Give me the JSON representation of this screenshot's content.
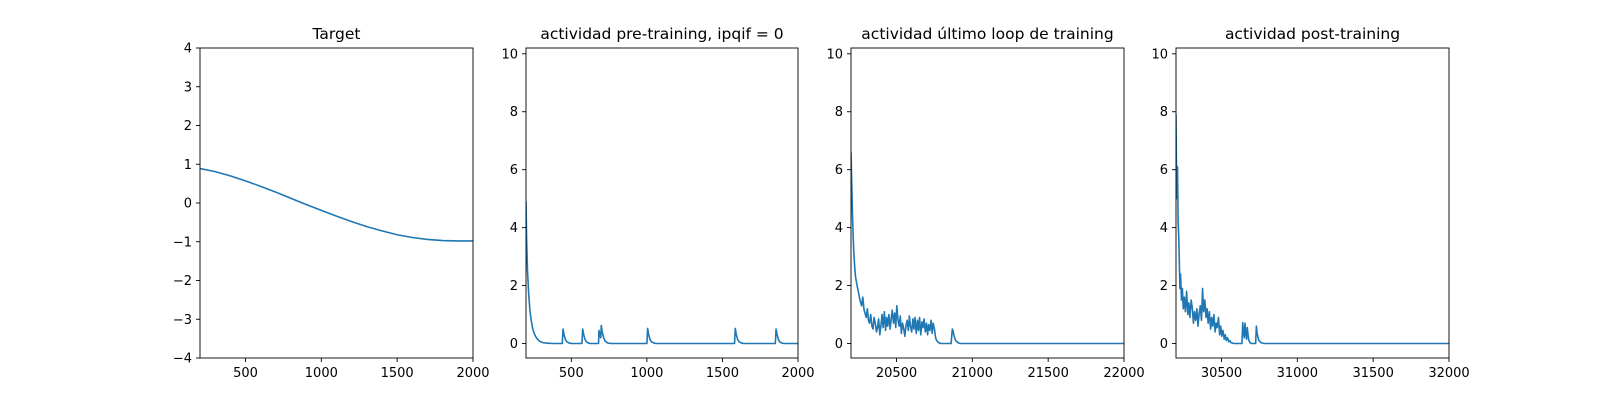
{
  "chart_data": [
    {
      "type": "line",
      "title": "Target",
      "xlabel": "",
      "ylabel": "",
      "xlim": [
        200,
        2000
      ],
      "ylim": [
        -4,
        4
      ],
      "xticks": [
        500,
        1000,
        1500,
        2000
      ],
      "xtick_labels": [
        "500",
        "1000",
        "1500",
        "2000"
      ],
      "yticks": [
        -4,
        -3,
        -2,
        -1,
        0,
        1,
        2,
        3,
        4
      ],
      "ytick_labels": [
        "−4",
        "−3",
        "−2",
        "−1",
        "0",
        "1",
        "2",
        "3",
        "4"
      ],
      "grid": false,
      "color": "#1f77b4",
      "series": [
        {
          "x": [
            200,
            300,
            400,
            500,
            600,
            700,
            800,
            900,
            1000,
            1100,
            1200,
            1300,
            1400,
            1500,
            1600,
            1700,
            1800,
            1900,
            2000
          ],
          "y": [
            0.89,
            0.81,
            0.7,
            0.57,
            0.43,
            0.28,
            0.12,
            -0.04,
            -0.19,
            -0.34,
            -0.48,
            -0.61,
            -0.72,
            -0.82,
            -0.89,
            -0.94,
            -0.97,
            -0.98,
            -0.98
          ]
        }
      ]
    },
    {
      "type": "line",
      "title": "actividad pre-training, ipqif = 0",
      "xlabel": "",
      "ylabel": "",
      "xlim": [
        200,
        2000
      ],
      "ylim": [
        -0.5,
        10.2
      ],
      "xticks": [
        500,
        1000,
        1500,
        2000
      ],
      "xtick_labels": [
        "500",
        "1000",
        "1500",
        "2000"
      ],
      "yticks": [
        0,
        2,
        4,
        6,
        8,
        10
      ],
      "ytick_labels": [
        "0",
        "2",
        "4",
        "6",
        "8",
        "10"
      ],
      "grid": false,
      "color": "#1f77b4",
      "series": [
        {
          "x": [
            200,
            204,
            210,
            218,
            226,
            235,
            245,
            258,
            272,
            290,
            310,
            340,
            380,
            440,
            445,
            452,
            460,
            470,
            485,
            500,
            570,
            575,
            582,
            590,
            600,
            612,
            625,
            680,
            683,
            690,
            695,
            698,
            705,
            715,
            725,
            740,
            760,
            1000,
            1005,
            1012,
            1020,
            1030,
            1045,
            1060,
            1580,
            1585,
            1592,
            1600,
            1610,
            1625,
            1640,
            1850,
            1855,
            1862,
            1870,
            1880,
            1895,
            1910,
            2000
          ],
          "y": [
            4.9,
            3.6,
            2.5,
            1.7,
            1.15,
            0.78,
            0.5,
            0.3,
            0.17,
            0.08,
            0.03,
            0.01,
            0.0,
            0.0,
            0.5,
            0.3,
            0.15,
            0.06,
            0.02,
            0.0,
            0.0,
            0.5,
            0.3,
            0.15,
            0.06,
            0.02,
            0.0,
            0.0,
            0.45,
            0.25,
            0.2,
            0.62,
            0.38,
            0.18,
            0.08,
            0.02,
            0.0,
            0.0,
            0.52,
            0.3,
            0.15,
            0.06,
            0.02,
            0.0,
            0.0,
            0.52,
            0.3,
            0.15,
            0.06,
            0.02,
            0.0,
            0.0,
            0.5,
            0.3,
            0.14,
            0.05,
            0.01,
            0.0,
            0.0
          ]
        }
      ]
    },
    {
      "type": "line",
      "title": "actividad último loop de training",
      "xlabel": "",
      "ylabel": "",
      "xlim": [
        20200,
        22000
      ],
      "ylim": [
        -0.5,
        10.2
      ],
      "xticks": [
        20500,
        21000,
        21500,
        22000
      ],
      "xtick_labels": [
        "20500",
        "21000",
        "21500",
        "22000"
      ],
      "yticks": [
        0,
        2,
        4,
        6,
        8,
        10
      ],
      "ytick_labels": [
        "0",
        "2",
        "4",
        "6",
        "8",
        "10"
      ],
      "grid": false,
      "color": "#1f77b4",
      "series": [
        {
          "x": [
            20200,
            20205,
            20210,
            20215,
            20220,
            20225,
            20230,
            20240,
            20248,
            20255,
            20262,
            20270,
            20278,
            20285,
            20292,
            20300,
            20308,
            20315,
            20322,
            20330,
            20338,
            20345,
            20352,
            20360,
            20368,
            20375,
            20382,
            20390,
            20398,
            20405,
            20412,
            20420,
            20428,
            20435,
            20442,
            20450,
            20458,
            20465,
            20472,
            20480,
            20488,
            20495,
            20502,
            20510,
            20518,
            20525,
            20532,
            20540,
            20548,
            20555,
            20562,
            20570,
            20578,
            20585,
            20592,
            20600,
            20608,
            20615,
            20622,
            20630,
            20638,
            20645,
            20652,
            20660,
            20668,
            20675,
            20682,
            20690,
            20698,
            20705,
            20712,
            20720,
            20728,
            20735,
            20742,
            20750,
            20758,
            20765,
            20775,
            20790,
            20810,
            20840,
            20860,
            20868,
            20872,
            20880,
            20890,
            20905,
            20920,
            21000,
            21500,
            22000
          ],
          "y": [
            6.6,
            5.5,
            4.4,
            3.6,
            3.0,
            2.6,
            2.3,
            2.0,
            1.8,
            1.6,
            1.45,
            1.3,
            1.6,
            1.2,
            1.05,
            0.9,
            1.2,
            0.8,
            0.7,
            1.0,
            0.6,
            0.5,
            0.9,
            0.7,
            0.4,
            0.55,
            0.85,
            0.3,
            0.65,
            1.0,
            0.55,
            1.1,
            0.45,
            0.9,
            0.6,
            1.0,
            0.5,
            0.85,
            1.15,
            0.7,
            1.05,
            0.55,
            1.3,
            0.8,
            0.6,
            0.95,
            0.35,
            0.7,
            0.5,
            0.25,
            0.6,
            0.8,
            0.45,
            0.95,
            0.6,
            0.4,
            0.85,
            0.5,
            0.9,
            0.35,
            0.8,
            0.45,
            0.9,
            0.3,
            0.75,
            0.55,
            0.85,
            0.4,
            0.7,
            0.3,
            0.65,
            0.45,
            0.8,
            0.35,
            0.7,
            0.5,
            0.2,
            0.1,
            0.04,
            0.0,
            0.0,
            0.0,
            0.0,
            0.5,
            0.45,
            0.25,
            0.1,
            0.03,
            0.0,
            0.0,
            0.0,
            0.0
          ]
        }
      ]
    },
    {
      "type": "line",
      "title": "actividad post-training",
      "xlabel": "",
      "ylabel": "",
      "xlim": [
        30200,
        32000
      ],
      "ylim": [
        -0.5,
        10.2
      ],
      "xticks": [
        30500,
        31000,
        31500,
        32000
      ],
      "xtick_labels": [
        "30500",
        "31000",
        "31500",
        "32000"
      ],
      "yticks": [
        0,
        2,
        4,
        6,
        8,
        10
      ],
      "ytick_labels": [
        "0",
        "2",
        "4",
        "6",
        "8",
        "10"
      ],
      "grid": false,
      "color": "#1f77b4",
      "series": [
        {
          "x": [
            30200,
            30203,
            30206,
            30210,
            30214,
            30218,
            30222,
            30226,
            30230,
            30236,
            30242,
            30248,
            30255,
            30262,
            30270,
            30278,
            30285,
            30292,
            30300,
            30308,
            30315,
            30322,
            30330,
            30338,
            30345,
            30352,
            30360,
            30368,
            30375,
            30382,
            30390,
            30398,
            30405,
            30412,
            30420,
            30428,
            30435,
            30442,
            30450,
            30458,
            30465,
            30472,
            30480,
            30488,
            30495,
            30502,
            30510,
            30518,
            30525,
            30532,
            30540,
            30548,
            30555,
            30562,
            30570,
            30580,
            30592,
            30605,
            30620,
            30635,
            30640,
            30645,
            30650,
            30655,
            30660,
            30665,
            30670,
            30675,
            30680,
            30685,
            30690,
            30700,
            30715,
            30725,
            30730,
            30735,
            30745,
            30760,
            30780,
            30850,
            31000,
            31500,
            32000
          ],
          "y": [
            7.9,
            6.0,
            5.0,
            6.1,
            4.2,
            3.7,
            2.8,
            1.9,
            2.4,
            1.5,
            1.9,
            1.2,
            1.6,
            1.1,
            1.8,
            1.0,
            1.4,
            0.9,
            1.5,
            1.2,
            0.7,
            1.1,
            0.8,
            1.2,
            0.6,
            1.0,
            1.3,
            0.8,
            1.9,
            1.1,
            1.5,
            0.9,
            1.2,
            0.7,
            1.1,
            0.5,
            0.9,
            0.6,
            1.0,
            0.4,
            0.7,
            0.55,
            0.9,
            0.3,
            0.6,
            0.25,
            0.45,
            0.15,
            0.3,
            0.1,
            0.2,
            0.06,
            0.1,
            0.03,
            0.02,
            0.0,
            0.0,
            0.0,
            0.0,
            0.0,
            0.72,
            0.4,
            0.2,
            0.7,
            0.35,
            0.15,
            0.55,
            0.3,
            0.12,
            0.06,
            0.02,
            0.0,
            0.0,
            0.0,
            0.6,
            0.35,
            0.12,
            0.03,
            0.0,
            0.0,
            0.0,
            0.0,
            0.0
          ]
        }
      ]
    }
  ]
}
